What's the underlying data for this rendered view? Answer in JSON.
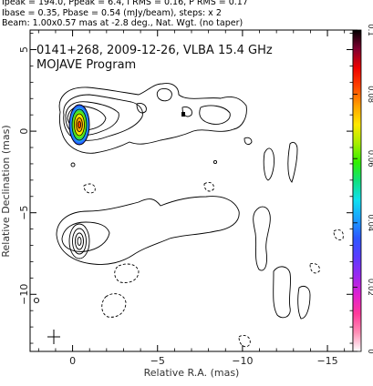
{
  "header": {
    "line1": "Ipeak = 194.0, Ppeak = 6.4, I RMS = 0.16, P RMS = 0.17",
    "line2": "Ibase = 0.35, Pbase = 0.54 (mJy/beam), steps: x 2",
    "line3": "Beam: 1.00x0.57 mas at -2.8 deg., Nat. Wgt. (no taper)"
  },
  "chart_data": {
    "type": "contour",
    "title": "0141+268, 2009-12-26, VLBA 15.4 GHz",
    "subtitle": "MOJAVE Program",
    "xlabel": "Relative R.A. (mas)",
    "ylabel": "Relative Declination (mas)",
    "xlim": [
      2.5,
      -16.5
    ],
    "ylim": [
      -13.5,
      6.2
    ],
    "xticks": [
      0,
      -5,
      -10,
      -15
    ],
    "xtick_labels": [
      "0",
      "−5",
      "−10",
      "−15"
    ],
    "yticks": [
      5,
      0,
      -5,
      -10
    ],
    "ytick_labels": [
      "5",
      "0",
      "−5",
      "−10"
    ],
    "grid": false,
    "colorbar": {
      "min": 0,
      "max": 0.1,
      "ticks": [
        0,
        0.02,
        0.04,
        0.06,
        0.08,
        0.1
      ],
      "tick_labels": [
        "0",
        "0.02",
        "0.04",
        "0.06",
        "0.08",
        "0.1"
      ],
      "colors": [
        "#ffffff",
        "#ff8fb6",
        "#ff3a9a",
        "#e020d0",
        "#9a28f0",
        "#5a3cff",
        "#2c58ff",
        "#1aa0ff",
        "#10e0f0",
        "#10e080",
        "#30f000",
        "#a8ee00",
        "#ffe800",
        "#ffa000",
        "#ff4400",
        "#ee0000",
        "#800030",
        "#000000"
      ]
    },
    "total_intensity": {
      "core": {
        "x": 0.0,
        "y": 0.0
      },
      "component": {
        "x": 0.1,
        "y": 0.0
      },
      "contour_levels": [
        0.35,
        0.7,
        1.4,
        2.8,
        5.6,
        11.2,
        22.4,
        44.8,
        89.6,
        179.2
      ],
      "jet_direction": "west"
    },
    "polarized_intensity": {
      "core": {
        "x": 0.1,
        "y": -7.0
      },
      "contour_levels": [
        0.54,
        1.08,
        2.16,
        4.32
      ],
      "negative_contours": true
    },
    "fractional_pol_peak": {
      "x": -6.4,
      "y": 0.9
    }
  }
}
